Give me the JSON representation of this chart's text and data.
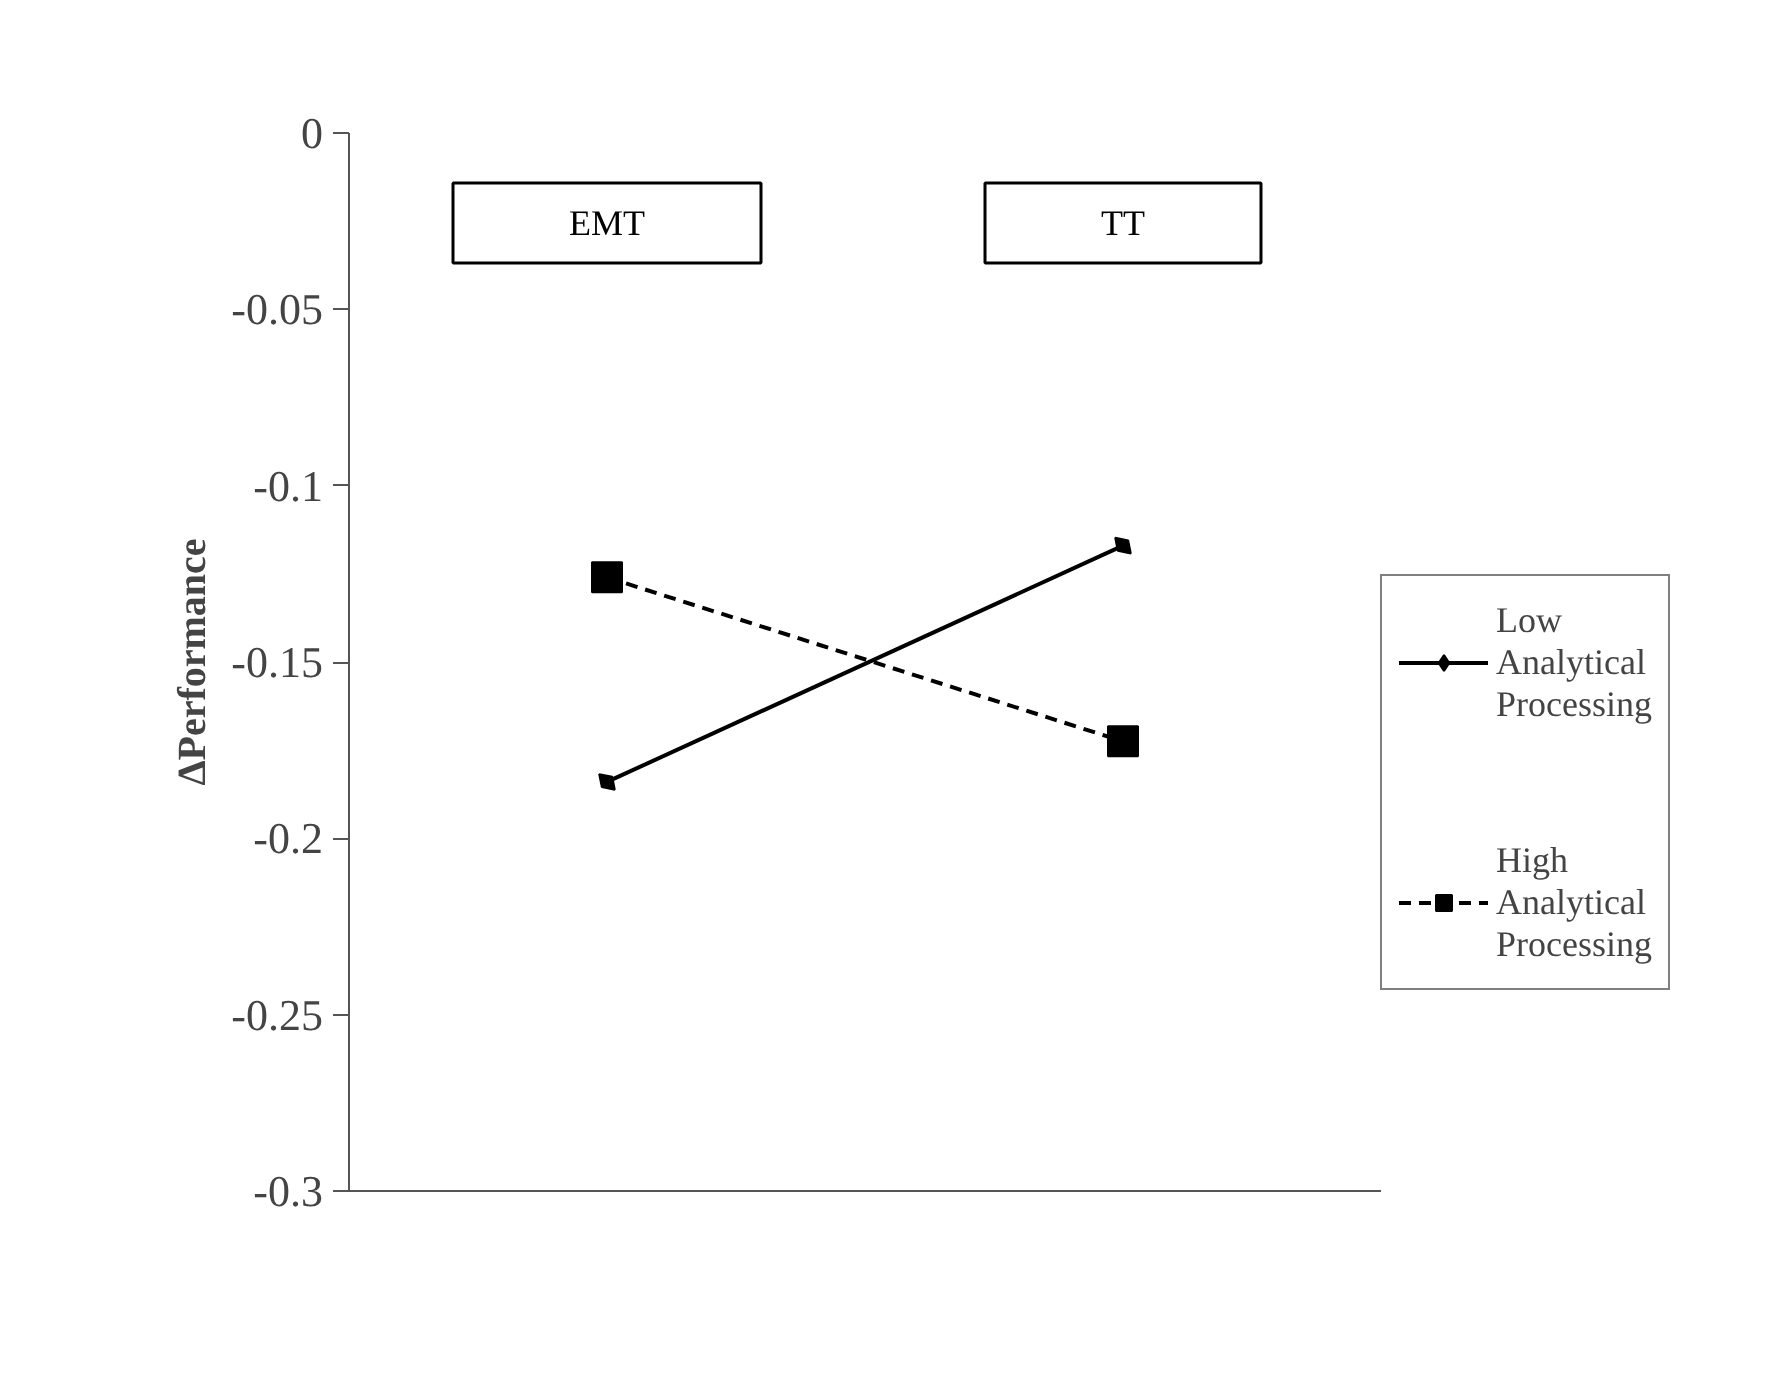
{
  "chart_data": {
    "type": "line",
    "ylabel": "ΔPerformance",
    "categories": [
      "EMT",
      "TT"
    ],
    "series": [
      {
        "name": "Low Analytical Processing",
        "color": "#000000",
        "values": [
          -0.184,
          -0.117
        ],
        "marker": "diamond",
        "line_style": "solid"
      },
      {
        "name": "High Analytical Processing",
        "color": "#000000",
        "values": [
          -0.126,
          -0.1725
        ],
        "marker": "square",
        "line_style": "dashed"
      }
    ],
    "ylim": [
      -0.3,
      0
    ],
    "yticks": [
      0,
      -0.05,
      -0.1,
      -0.15,
      -0.2,
      -0.25,
      -0.3
    ],
    "grid": false,
    "legend": "right"
  }
}
